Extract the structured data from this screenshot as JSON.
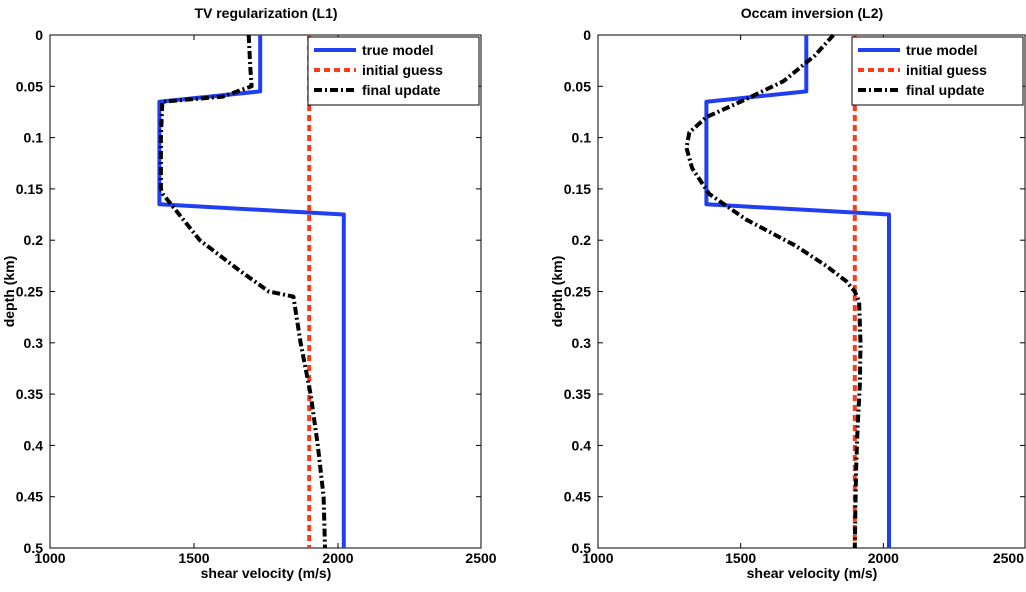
{
  "chart_data": [
    {
      "type": "line",
      "title": "TV regularization (L1)",
      "xlabel": "shear velocity (m/s)",
      "ylabel": "depth (km)",
      "xlim": [
        1000,
        2500
      ],
      "ylim": [
        0,
        0.5
      ],
      "y_reversed": true,
      "xticks": [
        "1000",
        "1500",
        "2000",
        "2500"
      ],
      "yticks": [
        "0",
        "0.05",
        "0.1",
        "0.15",
        "0.2",
        "0.25",
        "0.3",
        "0.35",
        "0.4",
        "0.45",
        "0.5"
      ],
      "legend_position": "top-right",
      "series": [
        {
          "name": "true model",
          "color": "#1f3ff0",
          "dash": "solid",
          "x": [
            1730,
            1730,
            1380,
            1380,
            2020,
            2020
          ],
          "y": [
            0,
            0.055,
            0.065,
            0.165,
            0.175,
            0.5
          ]
        },
        {
          "name": "initial guess",
          "color": "#ff3a1a",
          "dash": "dashed",
          "x": [
            1900,
            1900
          ],
          "y": [
            0,
            0.5
          ]
        },
        {
          "name": "final update",
          "color": "#000000",
          "dash": "dashdot",
          "x": [
            1690,
            1695,
            1700,
            1600,
            1390,
            1385,
            1385,
            1392,
            1420,
            1520,
            1660,
            1760,
            1845,
            1870,
            1905,
            1930,
            1950,
            1955
          ],
          "y": [
            0,
            0.03,
            0.05,
            0.06,
            0.065,
            0.1,
            0.15,
            0.155,
            0.165,
            0.2,
            0.23,
            0.25,
            0.255,
            0.3,
            0.35,
            0.4,
            0.45,
            0.5
          ]
        }
      ]
    },
    {
      "type": "line",
      "title": "Occam inversion (L2)",
      "xlabel": "shear velocity (m/s)",
      "ylabel": "depth (km)",
      "xlim": [
        1000,
        2500
      ],
      "ylim": [
        0,
        0.5
      ],
      "y_reversed": true,
      "xticks": [
        "1000",
        "1500",
        "2000",
        "2500"
      ],
      "yticks": [
        "0",
        "0.05",
        "0.1",
        "0.15",
        "0.2",
        "0.25",
        "0.3",
        "0.35",
        "0.4",
        "0.45",
        "0.5"
      ],
      "legend_position": "top-right",
      "series": [
        {
          "name": "true model",
          "color": "#1f3ff0",
          "dash": "solid",
          "x": [
            1730,
            1730,
            1380,
            1380,
            2020,
            2020
          ],
          "y": [
            0,
            0.055,
            0.065,
            0.165,
            0.175,
            0.5
          ]
        },
        {
          "name": "initial guess",
          "color": "#ff3a1a",
          "dash": "dashed",
          "x": [
            1900,
            1900
          ],
          "y": [
            0,
            0.5
          ]
        },
        {
          "name": "final update",
          "color": "#000000",
          "dash": "dashdot",
          "x": [
            1825,
            1760,
            1650,
            1500,
            1380,
            1320,
            1310,
            1330,
            1390,
            1520,
            1690,
            1800,
            1870,
            1900,
            1915,
            1920,
            1918,
            1910,
            1905,
            1902,
            1900
          ],
          "y": [
            0,
            0.02,
            0.045,
            0.065,
            0.08,
            0.095,
            0.11,
            0.13,
            0.155,
            0.18,
            0.205,
            0.225,
            0.24,
            0.25,
            0.26,
            0.3,
            0.34,
            0.38,
            0.42,
            0.46,
            0.5
          ]
        }
      ]
    }
  ]
}
